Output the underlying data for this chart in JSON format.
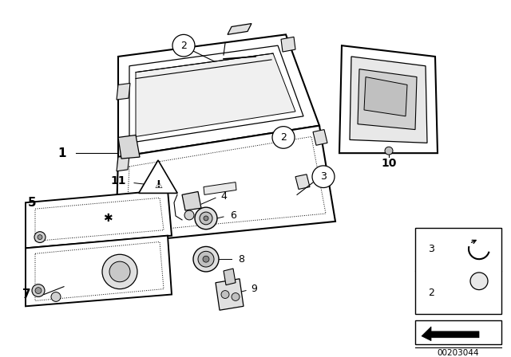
{
  "background_color": "#ffffff",
  "diagram_id": "00203044",
  "line_color": "#000000",
  "lw_main": 1.2,
  "lw_thin": 0.7,
  "lw_thick": 1.8
}
